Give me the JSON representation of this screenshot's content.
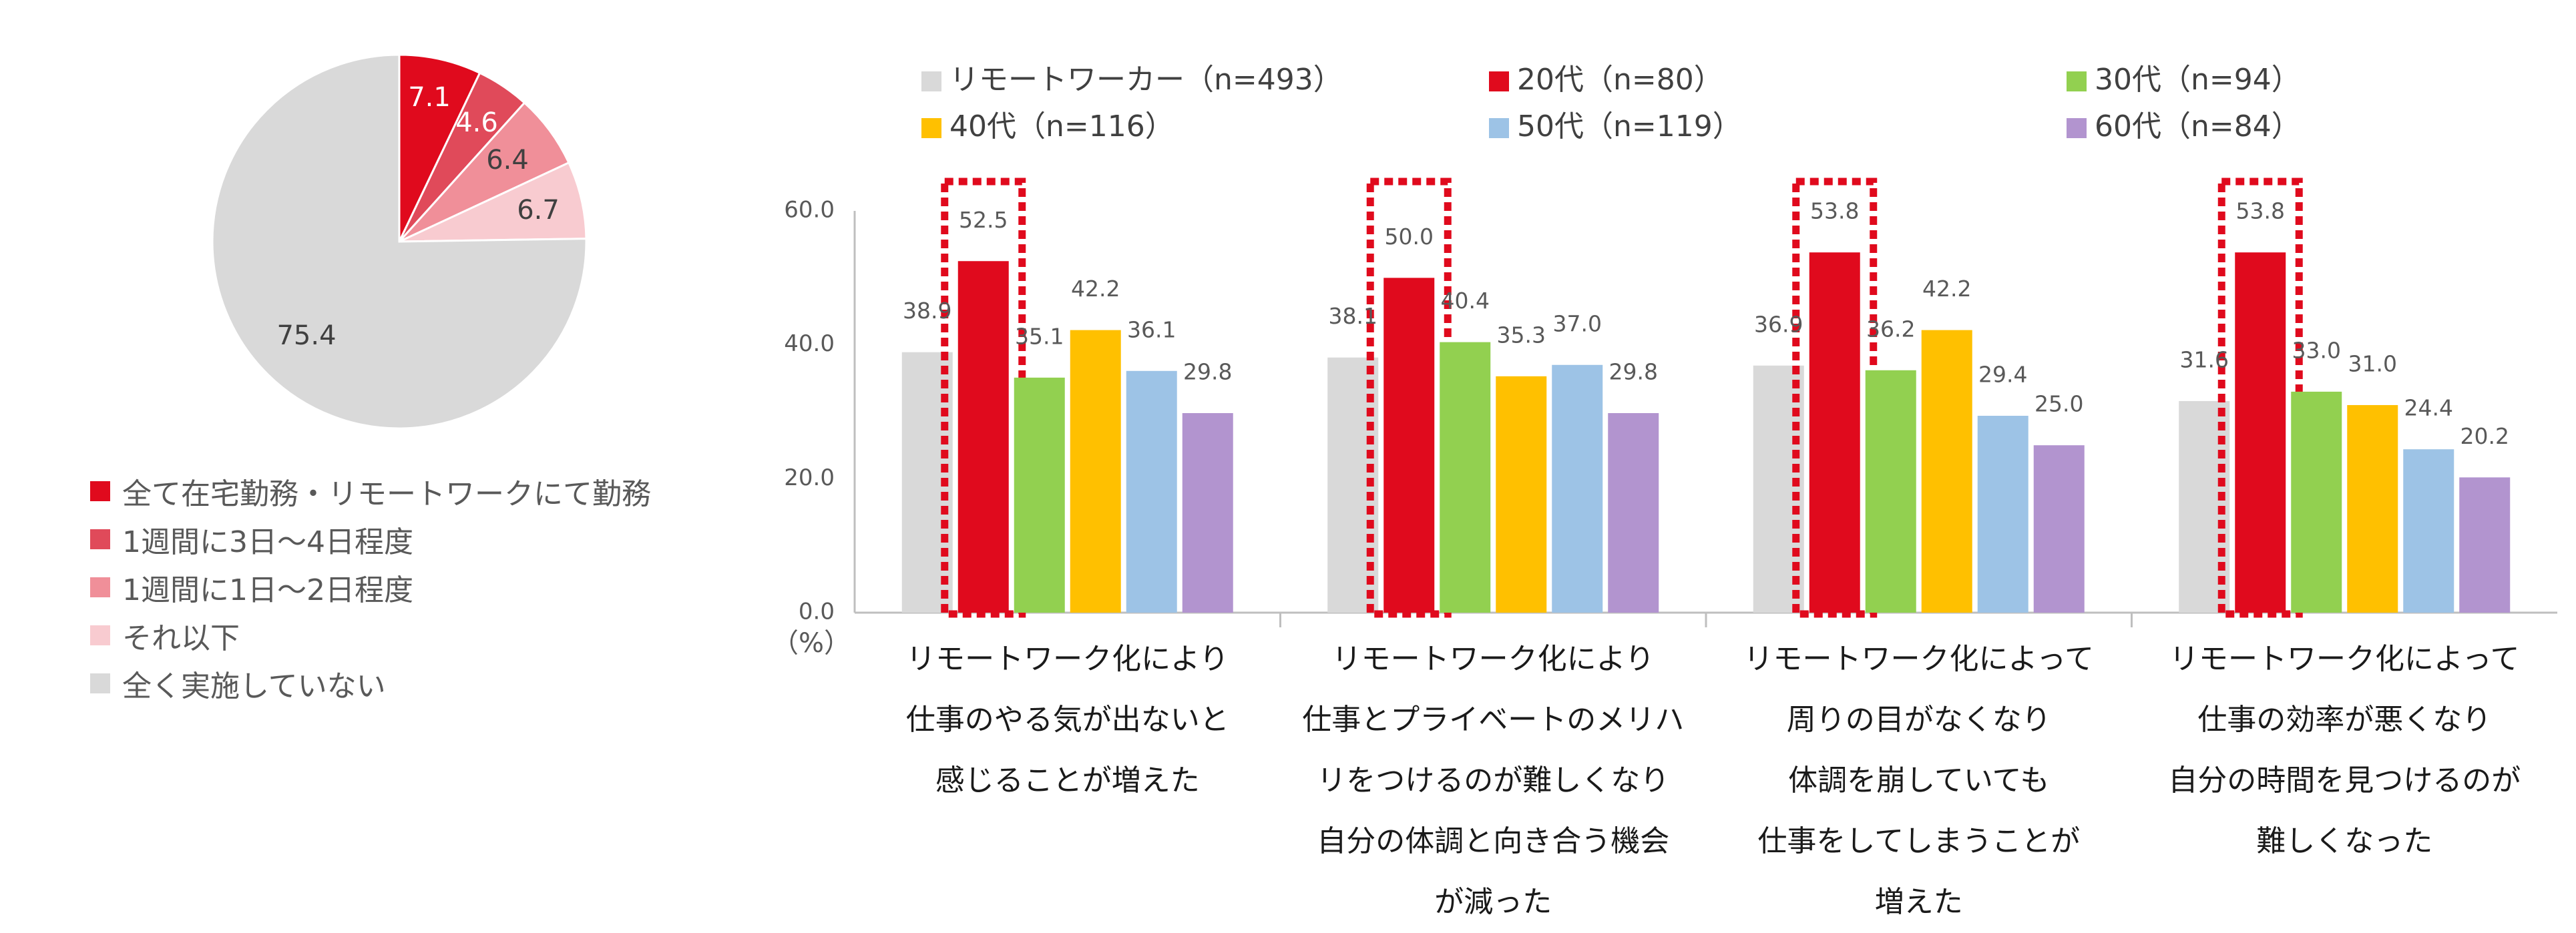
{
  "colors": {
    "red": "#E00A1D",
    "green": "#92D050",
    "yellow": "#FFC000",
    "light_gray": "#D9D9D9",
    "blue": "#9DC3E6",
    "purple": "#B294CF",
    "pie_mid_red": "#E04A5A",
    "pie_pink": "#F08F99",
    "pie_light_pink": "#F8CBD0",
    "highlight_dash": "#E00A1D"
  },
  "chart_data": [
    {
      "type": "pie",
      "slices": [
        {
          "label": "全て在宅勤務・リモートワークにて勤務",
          "value": 7.1,
          "value_label": "7.1",
          "color": "#E00A1D"
        },
        {
          "label": "1週間に3日〜4日程度",
          "value": 4.6,
          "value_label": "4.6",
          "color": "#E04A5A"
        },
        {
          "label": "1週間に1日〜2日程度",
          "value": 6.4,
          "value_label": "6.4",
          "color": "#F08F99"
        },
        {
          "label": "それ以下",
          "value": 6.7,
          "value_label": "6.7",
          "color": "#F8CBD0"
        },
        {
          "label": "全く実施していない",
          "value": 75.4,
          "value_label": "75.4",
          "color": "#D9D9D9"
        }
      ],
      "legend_placement": "bottom"
    },
    {
      "type": "bar",
      "unit_label": "（%）",
      "ylim": [
        0,
        60
      ],
      "yticks": [
        "0.0",
        "20.0",
        "40.0",
        "60.0"
      ],
      "ytick_values": [
        0,
        20,
        40,
        60
      ],
      "grid": false,
      "legend_placement": "top",
      "categories": [
        [
          "リモートワーク化により",
          "仕事のやる気が出ないと",
          "感じることが増えた"
        ],
        [
          "リモートワーク化により",
          "仕事とプライベートのメリハ",
          "リをつけるのが難しくなり",
          "自分の体調と向き合う機会",
          "が減った"
        ],
        [
          "リモートワーク化によって",
          "周りの目がなくなり",
          "体調を崩していても",
          "仕事をしてしまうことが",
          "増えた"
        ],
        [
          "リモートワーク化によって",
          "仕事の効率が悪くなり",
          "自分の時間を見つけるのが",
          "難しくなった"
        ]
      ],
      "series": [
        {
          "name": "リモートワーカー（n=493）",
          "color": "#D9D9D9",
          "values": [
            38.9,
            38.1,
            36.9,
            31.6
          ],
          "labels": [
            "38.9",
            "38.1",
            "36.9",
            "31.6"
          ]
        },
        {
          "name": "20代（n=80）",
          "color": "#E00A1D",
          "values": [
            52.5,
            50.0,
            53.8,
            53.8
          ],
          "labels": [
            "52.5",
            "50.0",
            "53.8",
            "53.8"
          ],
          "highlighted": true
        },
        {
          "name": "30代（n=94）",
          "color": "#92D050",
          "values": [
            35.1,
            40.4,
            36.2,
            33.0
          ],
          "labels": [
            "35.1",
            "40.4",
            "36.2",
            "33.0"
          ]
        },
        {
          "name": "40代（n=116）",
          "color": "#FFC000",
          "values": [
            42.2,
            35.3,
            42.2,
            31.0
          ],
          "labels": [
            "42.2",
            "35.3",
            "42.2",
            "31.0"
          ]
        },
        {
          "name": "50代（n=119）",
          "color": "#9DC3E6",
          "values": [
            36.1,
            37.0,
            29.4,
            24.4
          ],
          "labels": [
            "36.1",
            "37.0",
            "29.4",
            "24.4"
          ]
        },
        {
          "name": "60代（n=84）",
          "color": "#B294CF",
          "values": [
            29.8,
            29.8,
            25.0,
            20.2
          ],
          "labels": [
            "29.8",
            "29.8",
            "25.0",
            "20.2"
          ]
        }
      ]
    }
  ]
}
